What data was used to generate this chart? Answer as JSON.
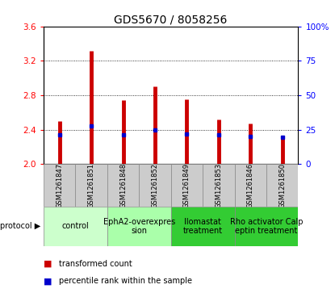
{
  "title": "GDS5670 / 8058256",
  "samples": [
    "GSM1261847",
    "GSM1261851",
    "GSM1261848",
    "GSM1261852",
    "GSM1261849",
    "GSM1261853",
    "GSM1261846",
    "GSM1261850"
  ],
  "red_values": [
    2.5,
    3.32,
    2.74,
    2.9,
    2.75,
    2.52,
    2.47,
    2.31
  ],
  "blue_values": [
    2.34,
    2.44,
    2.34,
    2.4,
    2.35,
    2.34,
    2.32,
    2.31
  ],
  "ylim": [
    2.0,
    3.6
  ],
  "yticks_left": [
    2.0,
    2.4,
    2.8,
    3.2,
    3.6
  ],
  "yticks_right": [
    0,
    25,
    50,
    75,
    100
  ],
  "group_ranges": [
    [
      0,
      1,
      "control",
      "#ccffcc"
    ],
    [
      2,
      3,
      "EphA2-overexpres\nsion",
      "#aaffaa"
    ],
    [
      4,
      5,
      "Ilomastat\ntreatment",
      "#33cc33"
    ],
    [
      6,
      7,
      "Rho activator Calp\neptin treatment",
      "#33cc33"
    ]
  ],
  "bar_color": "#cc0000",
  "dot_color": "#0000cc",
  "sample_bg": "#cccccc",
  "title_fontsize": 10,
  "tick_fontsize": 7.5,
  "sample_fontsize": 6,
  "proto_fontsize": 7
}
